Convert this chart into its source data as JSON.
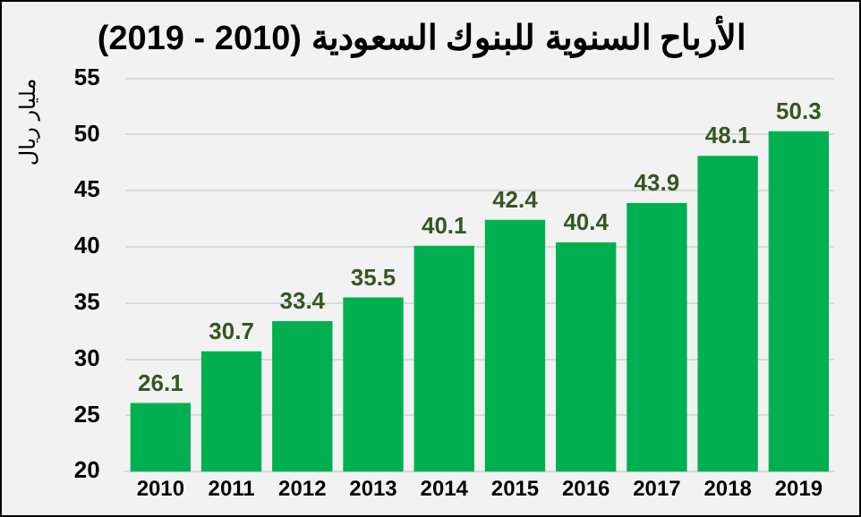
{
  "chart_data": {
    "type": "bar",
    "title": "الأرباح السنوية للبنوك السعودية (2010 - 2019)",
    "ylabel": "مليار ريال",
    "categories": [
      "2010",
      "2011",
      "2012",
      "2013",
      "2014",
      "2015",
      "2016",
      "2017",
      "2018",
      "2019"
    ],
    "values": [
      26.1,
      30.7,
      33.4,
      35.5,
      40.1,
      42.4,
      40.4,
      43.9,
      48.1,
      50.3
    ],
    "color": "#00b050",
    "ylim": [
      20,
      55
    ],
    "yticks": [
      20,
      25,
      30,
      35,
      40,
      45,
      50,
      55
    ],
    "grid": "y",
    "data_labels": true,
    "legend": false
  }
}
